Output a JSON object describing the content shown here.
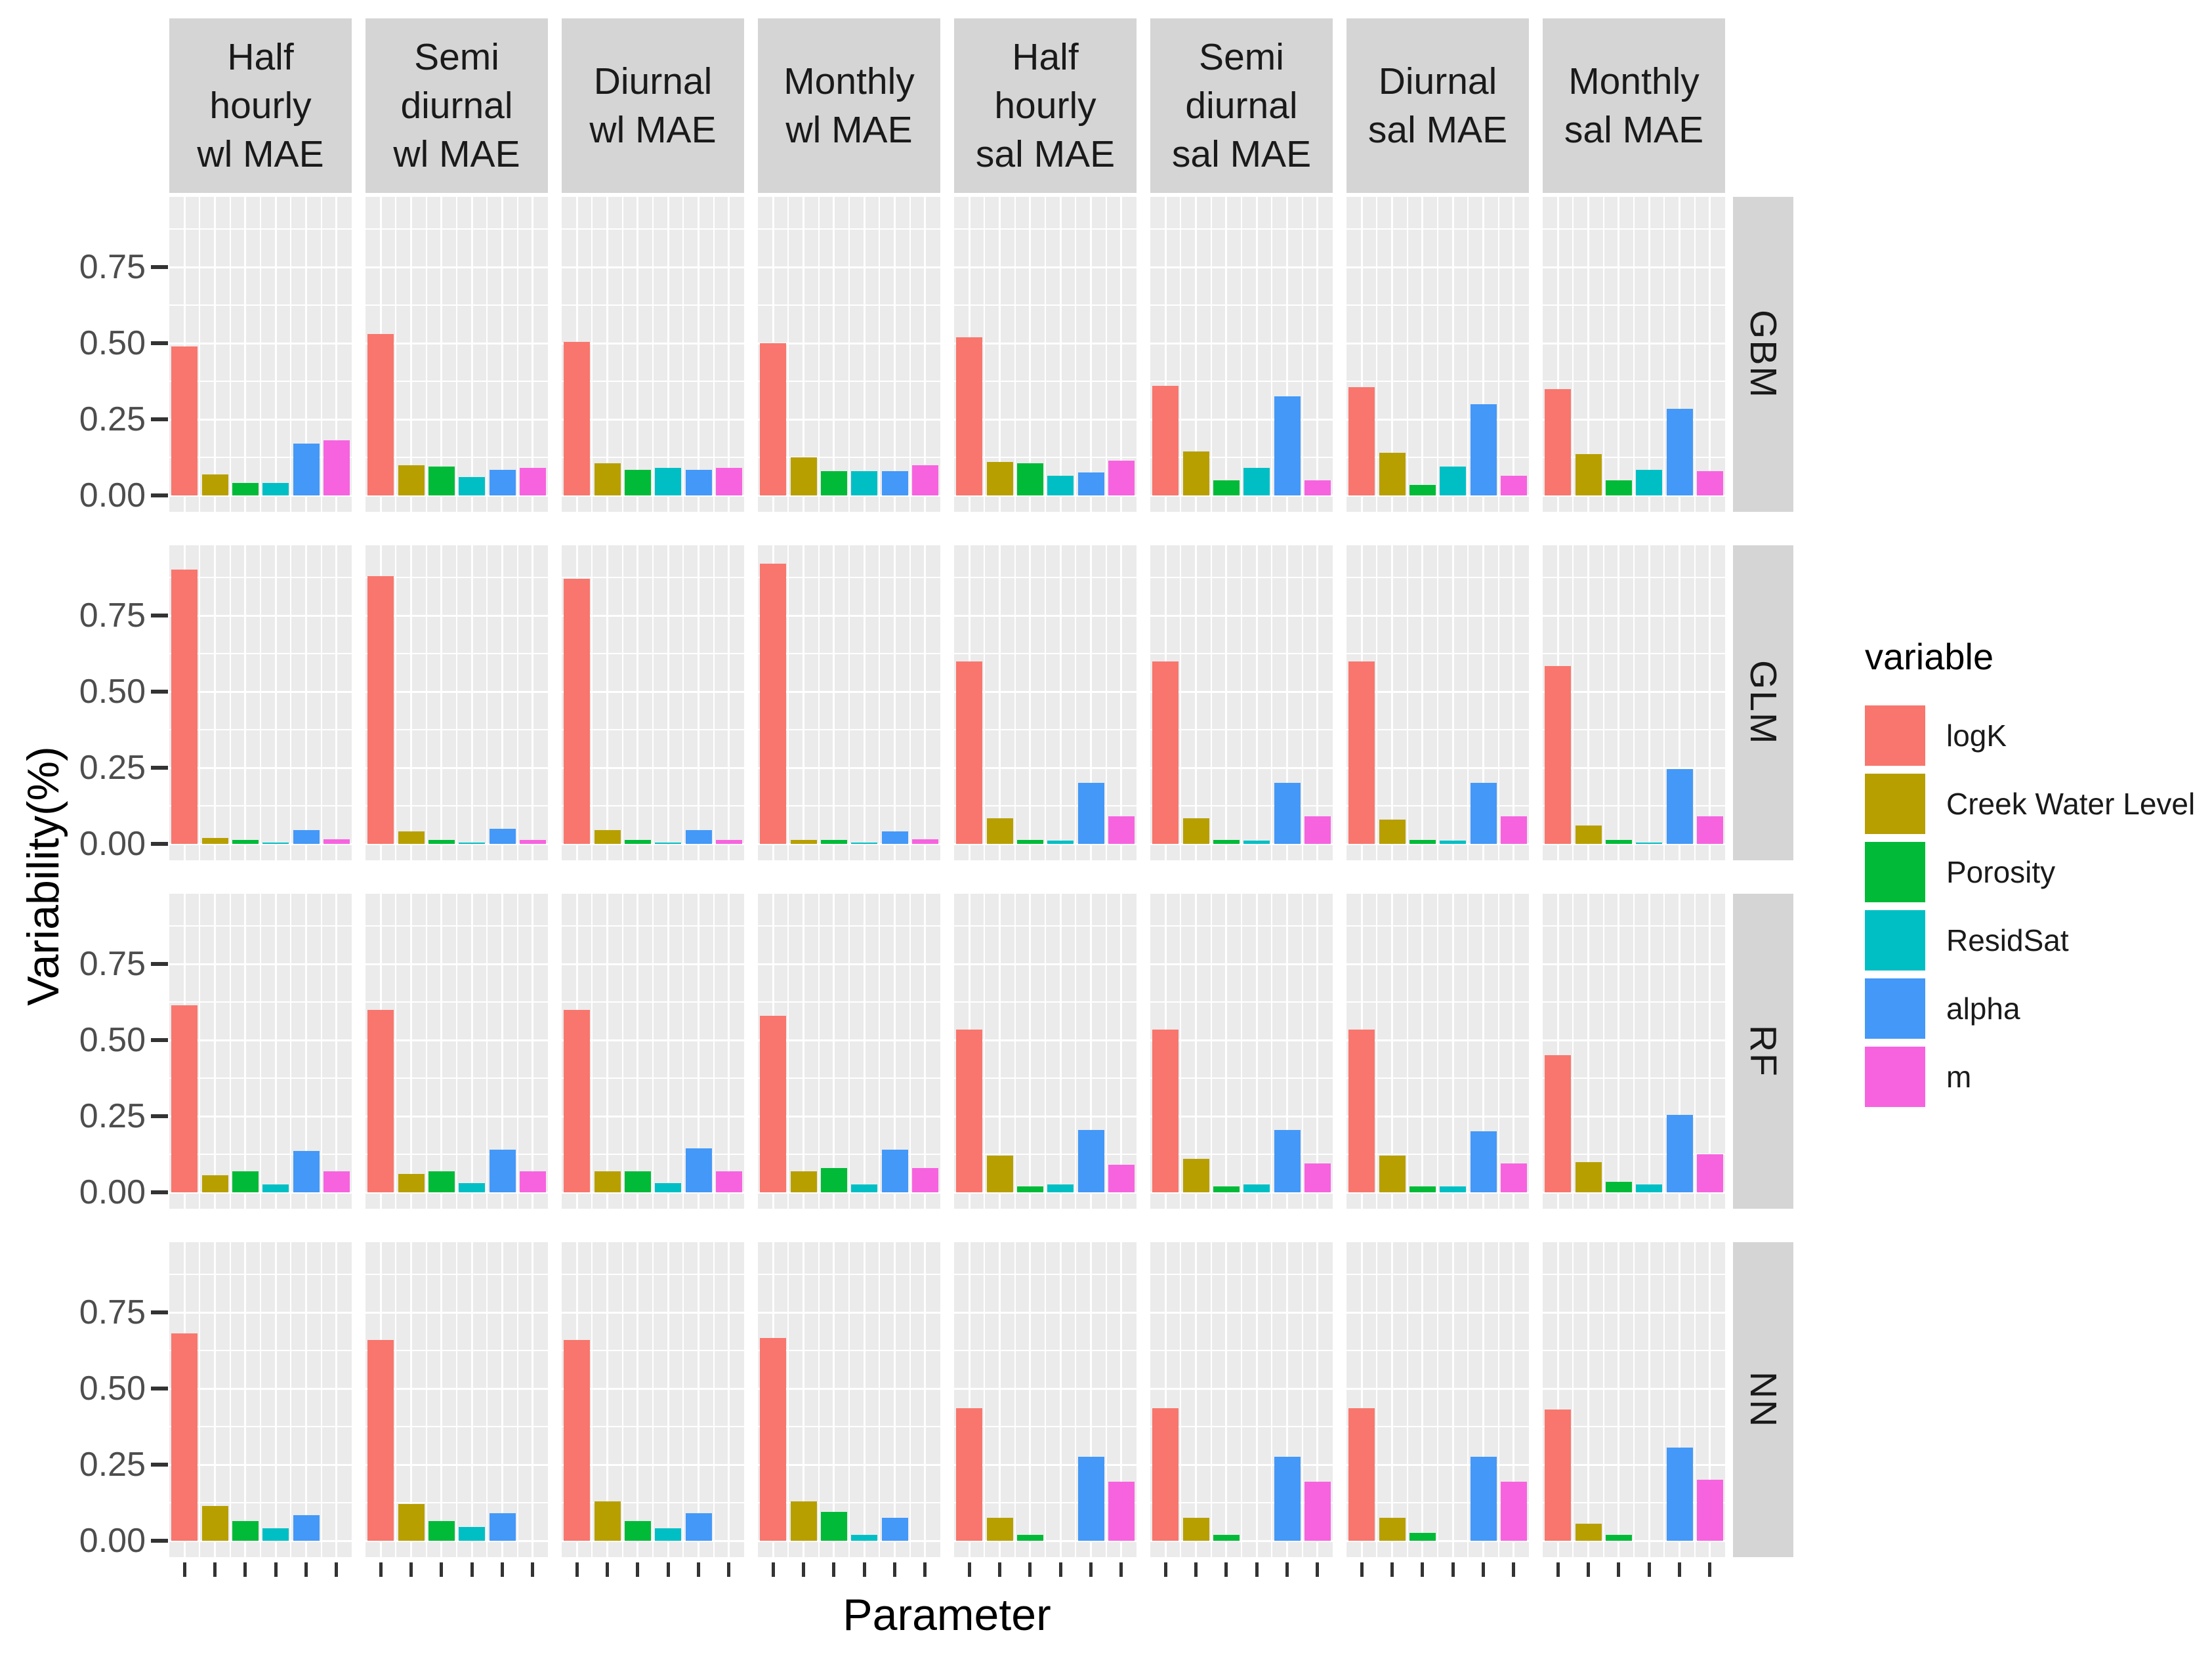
{
  "chart_data": {
    "type": "bar",
    "title": "",
    "xlabel": "Parameter",
    "ylabel": "Variability(%)",
    "legend_title": "variable",
    "legend_position": "right",
    "grid": true,
    "y_ticks": [
      0,
      0.25,
      0.5,
      0.75
    ],
    "y_tick_labels": [
      "0.00",
      "0.25",
      "0.50",
      "0.75"
    ],
    "y_minor_ticks": [
      0.125,
      0.375,
      0.625,
      0.875
    ],
    "ylim": [
      0,
      0.97
    ],
    "facet_columns": [
      "Half hourly wl MAE",
      "Semi diurnal wl MAE",
      "Diurnal wl MAE",
      "Monthly wl MAE",
      "Half hourly sal MAE",
      "Semi diurnal sal MAE",
      "Diurnal sal MAE",
      "Monthly sal MAE"
    ],
    "facet_column_lines": [
      [
        "Half",
        "hourly",
        "wl MAE"
      ],
      [
        "Semi",
        "diurnal",
        "wl MAE"
      ],
      [
        "Diurnal",
        "wl MAE"
      ],
      [
        "Monthly",
        "wl MAE"
      ],
      [
        "Half",
        "hourly",
        "sal MAE"
      ],
      [
        "Semi",
        "diurnal",
        "sal MAE"
      ],
      [
        "Diurnal",
        "sal MAE"
      ],
      [
        "Monthly",
        "sal MAE"
      ]
    ],
    "facet_rows": [
      "GBM",
      "GLM",
      "RF",
      "NN"
    ],
    "series": [
      {
        "name": "logK",
        "color": "#F8766D"
      },
      {
        "name": "Creek Water Level",
        "color": "#B79F00"
      },
      {
        "name": "Porosity",
        "color": "#00BA38"
      },
      {
        "name": "ResidSat",
        "color": "#00BFC4"
      },
      {
        "name": "alpha",
        "color": "#4498F7"
      },
      {
        "name": "m",
        "color": "#F763DF"
      }
    ],
    "values": {
      "GBM": [
        [
          0.49,
          0.07,
          0.04,
          0.04,
          0.17,
          0.18
        ],
        [
          0.53,
          0.1,
          0.095,
          0.06,
          0.085,
          0.09
        ],
        [
          0.505,
          0.105,
          0.085,
          0.09,
          0.085,
          0.09
        ],
        [
          0.5,
          0.125,
          0.08,
          0.08,
          0.08,
          0.1
        ],
        [
          0.52,
          0.11,
          0.105,
          0.065,
          0.075,
          0.115
        ],
        [
          0.36,
          0.145,
          0.05,
          0.09,
          0.325,
          0.05
        ],
        [
          0.355,
          0.14,
          0.035,
          0.095,
          0.3,
          0.065
        ],
        [
          0.35,
          0.135,
          0.05,
          0.085,
          0.285,
          0.08
        ]
      ],
      "GLM": [
        [
          0.9,
          0.02,
          0.012,
          0.003,
          0.045,
          0.015
        ],
        [
          0.88,
          0.04,
          0.012,
          0.003,
          0.05,
          0.012
        ],
        [
          0.87,
          0.045,
          0.012,
          0.003,
          0.045,
          0.012
        ],
        [
          0.92,
          0.012,
          0.012,
          0.003,
          0.04,
          0.015
        ],
        [
          0.6,
          0.085,
          0.012,
          0.01,
          0.2,
          0.09
        ],
        [
          0.6,
          0.085,
          0.012,
          0.01,
          0.2,
          0.09
        ],
        [
          0.6,
          0.08,
          0.013,
          0.01,
          0.2,
          0.09
        ],
        [
          0.585,
          0.06,
          0.013,
          0.005,
          0.245,
          0.09
        ]
      ],
      "RF": [
        [
          0.615,
          0.055,
          0.07,
          0.025,
          0.135,
          0.07
        ],
        [
          0.6,
          0.06,
          0.07,
          0.03,
          0.14,
          0.07
        ],
        [
          0.6,
          0.07,
          0.07,
          0.03,
          0.145,
          0.07
        ],
        [
          0.58,
          0.07,
          0.08,
          0.025,
          0.14,
          0.08
        ],
        [
          0.535,
          0.12,
          0.02,
          0.025,
          0.205,
          0.09
        ],
        [
          0.535,
          0.11,
          0.02,
          0.025,
          0.205,
          0.095
        ],
        [
          0.535,
          0.12,
          0.02,
          0.02,
          0.2,
          0.095
        ],
        [
          0.45,
          0.1,
          0.035,
          0.025,
          0.255,
          0.125
        ]
      ],
      "NN": [
        [
          0.68,
          0.115,
          0.065,
          0.04,
          0.085,
          0
        ],
        [
          0.66,
          0.12,
          0.065,
          0.045,
          0.09,
          0
        ],
        [
          0.66,
          0.13,
          0.065,
          0.04,
          0.09,
          0
        ],
        [
          0.665,
          0.13,
          0.095,
          0.02,
          0.075,
          0
        ],
        [
          0.435,
          0.075,
          0.02,
          0,
          0.275,
          0.195
        ],
        [
          0.435,
          0.075,
          0.02,
          0,
          0.275,
          0.195
        ],
        [
          0.435,
          0.075,
          0.025,
          0,
          0.275,
          0.195
        ],
        [
          0.43,
          0.055,
          0.02,
          0,
          0.305,
          0.2
        ]
      ]
    },
    "colors": {
      "panel_background": "#EBEBEB",
      "strip_background": "#D5D5D5",
      "grid": "#FFFFFF",
      "axis_tick": "#333333",
      "tick_label": "#4D4D4D",
      "axis_title": "#000000"
    }
  }
}
